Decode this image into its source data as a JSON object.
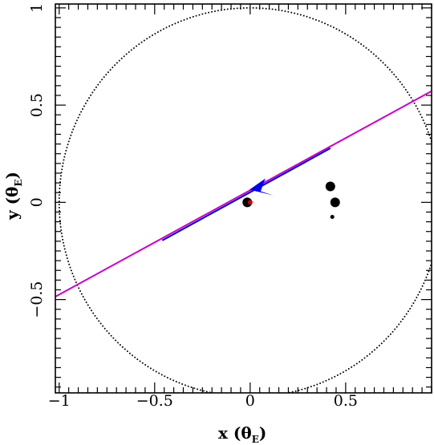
{
  "chart_data": {
    "type": "scatter",
    "title": "",
    "xlabel": {
      "main": "x (θ",
      "sub": "E",
      "close": ")"
    },
    "ylabel": {
      "main": "y (θ",
      "sub": "E",
      "close": ")"
    },
    "xlim": [
      -1.02,
      0.95
    ],
    "ylim": [
      -0.98,
      1.02
    ],
    "x_ticks_major": [
      -1,
      -0.5,
      0,
      0.5
    ],
    "x_tick_labels": [
      "−1",
      "−0.5",
      "0",
      "0.5"
    ],
    "y_ticks_major": [
      -0.5,
      0,
      0.5,
      1
    ],
    "y_tick_labels": [
      "−0.5",
      "0",
      "0.5",
      "1"
    ],
    "grid": false,
    "einstein_ring": {
      "center": [
        0,
        0
      ],
      "radius": 1,
      "style": "dotted",
      "color": "#000000"
    },
    "trajectory": {
      "start": [
        -1.02,
        -0.485
      ],
      "end": [
        0.95,
        0.572
      ],
      "blue_segment": [
        [
          -0.46,
          -0.196
        ],
        [
          0.42,
          0.278
        ]
      ],
      "outer_color": "#cc00cc",
      "inner_color": "#0000cc"
    },
    "source_arrow": {
      "at": [
        0.0,
        0.04
      ],
      "direction": "left-up",
      "color": "#0000ee"
    },
    "lens_points": [
      {
        "x": -0.015,
        "y": 0.0,
        "size": 6,
        "color": "#000000"
      },
      {
        "x": 0.0,
        "y": 0.0,
        "size": 3,
        "color": "#cc0000"
      },
      {
        "x": 0.42,
        "y": 0.082,
        "size": 6,
        "color": "#000000"
      },
      {
        "x": 0.445,
        "y": 0.0,
        "size": 6,
        "color": "#000000"
      },
      {
        "x": 0.43,
        "y": -0.075,
        "size": 2.5,
        "color": "#000000"
      }
    ]
  }
}
